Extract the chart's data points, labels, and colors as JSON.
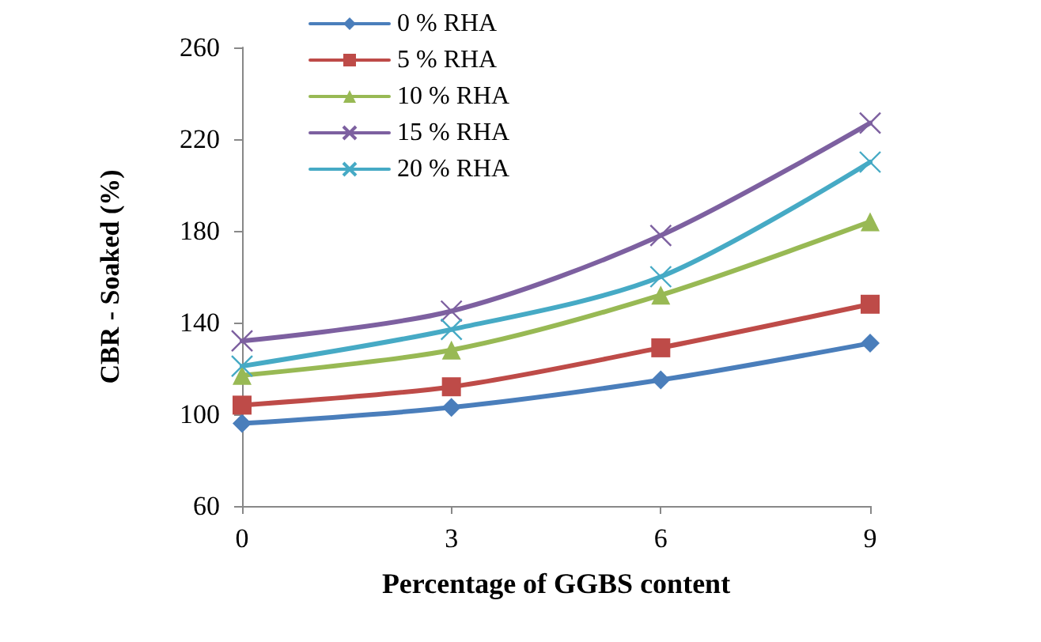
{
  "chart_data": {
    "type": "line",
    "xlabel": "Percentage of GGBS content",
    "ylabel": "CBR - Soaked (%)",
    "x": [
      0,
      3,
      6,
      9
    ],
    "xlim": [
      0,
      9
    ],
    "xticks": [
      0,
      3,
      6,
      9
    ],
    "ylim": [
      60,
      260
    ],
    "yticks": [
      60,
      100,
      140,
      180,
      220,
      260
    ],
    "grid": false,
    "legend": "top left",
    "line_style": "solid",
    "series": [
      {
        "name": "0 % RHA",
        "color": "#4a7ebb",
        "marker": "diamond",
        "values": [
          96,
          103,
          115,
          131
        ]
      },
      {
        "name": "5 % RHA",
        "color": "#be4b48",
        "marker": "square",
        "values": [
          104,
          112,
          129,
          148
        ]
      },
      {
        "name": "10 % RHA",
        "color": "#98b954",
        "marker": "triangle",
        "values": [
          117,
          128,
          152,
          184
        ]
      },
      {
        "name": "15 % RHA",
        "color": "#7d60a0",
        "marker": "cross",
        "values": [
          132,
          145,
          178,
          227
        ]
      },
      {
        "name": "20 % RHA",
        "color": "#46aac5",
        "marker": "cross",
        "values": [
          121,
          137,
          160,
          210
        ]
      }
    ]
  }
}
